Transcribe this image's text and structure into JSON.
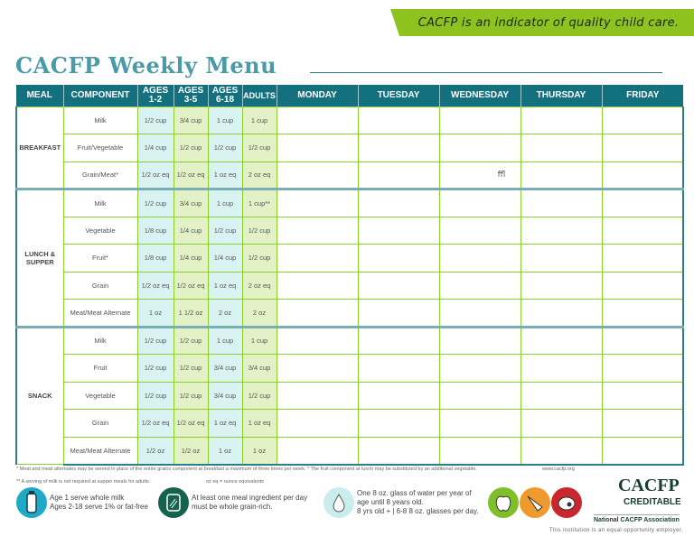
{
  "banner": "CACFP is an indicator of quality child care.",
  "title": "CACFP Weekly Menu",
  "headers": {
    "meal": "MEAL",
    "component": "COMPONENT",
    "ages12": [
      "AGES",
      "1-2"
    ],
    "ages35": [
      "AGES",
      "3-5"
    ],
    "ages618": [
      "AGES",
      "6-18"
    ],
    "adults": "ADULTS",
    "days": [
      "MONDAY",
      "TUESDAY",
      "WEDNESDAY",
      "THURSDAY",
      "FRIDAY"
    ]
  },
  "meals": [
    {
      "name": "BREAKFAST",
      "rows": [
        {
          "component": "Milk",
          "v": [
            "1/2 cup",
            "3/4 cup",
            "1 cup",
            "1 cup"
          ]
        },
        {
          "component": "Fruit/Vegetable",
          "v": [
            "1/4 cup",
            "1/2 cup",
            "1/2 cup",
            "1/2 cup"
          ]
        },
        {
          "component": "Grain/Meat*",
          "v": [
            "1/2 oz eq",
            "1/2 oz eq",
            "1 oz eq",
            "2 oz eq"
          ]
        }
      ]
    },
    {
      "name": "LUNCH & SUPPER",
      "rows": [
        {
          "component": "Milk",
          "v": [
            "1/2 cup",
            "3/4 cup",
            "1 cup",
            "1 cup**"
          ]
        },
        {
          "component": "Vegetable",
          "v": [
            "1/8 cup",
            "1/4 cup",
            "1/2 cup",
            "1/2 cup"
          ]
        },
        {
          "component": "Fruit*",
          "v": [
            "1/8 cup",
            "1/4 cup",
            "1/4 cup",
            "1/2 cup"
          ]
        },
        {
          "component": "Grain",
          "v": [
            "1/2 oz eq",
            "1/2 oz eq",
            "1 oz eq",
            "2 oz eq"
          ]
        },
        {
          "component": "Meat/Meat Alternate",
          "v": [
            "1 oz",
            "1 1/2 oz",
            "2 oz",
            "2 oz"
          ]
        }
      ]
    },
    {
      "name": "SNACK",
      "rows": [
        {
          "component": "Milk",
          "v": [
            "1/2 cup",
            "1/2 cup",
            "1 cup",
            "1 cup"
          ]
        },
        {
          "component": "Fruit",
          "v": [
            "1/2 cup",
            "1/2 cup",
            "3/4 cup",
            "3/4 cup"
          ]
        },
        {
          "component": "Vegetable",
          "v": [
            "1/2 cup",
            "1/2 cup",
            "3/4 cup",
            "1/2 cup"
          ]
        },
        {
          "component": "Grain",
          "v": [
            "1/2 oz eq",
            "1/2 oz eq",
            "1 oz eq",
            "1 oz eq"
          ]
        },
        {
          "component": "Meat/Meat Alternate",
          "v": [
            "1/2 oz",
            "1/2 oz",
            "1 oz",
            "1 oz"
          ]
        }
      ]
    }
  ],
  "stray_mark": "ﬄ",
  "footnotes": {
    "line1": "* Meat and meat alternates may be served in place of the entire grains component at breakfast a maximum of three times per week.  * The fruit component at lunch may be substituted by an additional vegetable.",
    "website": "www.cacfp.org",
    "line2": "** A serving of milk is not required at supper meals for adults.",
    "oz": "oz eq = ounce equivalents"
  },
  "tips": {
    "milk": [
      "Age 1 serve whole milk",
      "Ages 2-18 serve 1% or fat-free"
    ],
    "grain": [
      "At least one meal ingredient per day",
      "must be whole grain-rich."
    ],
    "water": [
      "One 8 oz. glass of water per year of",
      "age until 8 years old.",
      "8 yrs old + | 6-8 8 oz. glasses per day."
    ]
  },
  "logo": {
    "line1": "CACFP",
    "line2": "CREDITABLE",
    "line3": "National CACFP Association"
  },
  "equal_opportunity": "This institution is an equal opportunity employer.",
  "colors": {
    "teal": "#13707e",
    "green": "#8dc21f",
    "light_teal": "#d9f3f3",
    "light_green": "#e3f1c6"
  }
}
